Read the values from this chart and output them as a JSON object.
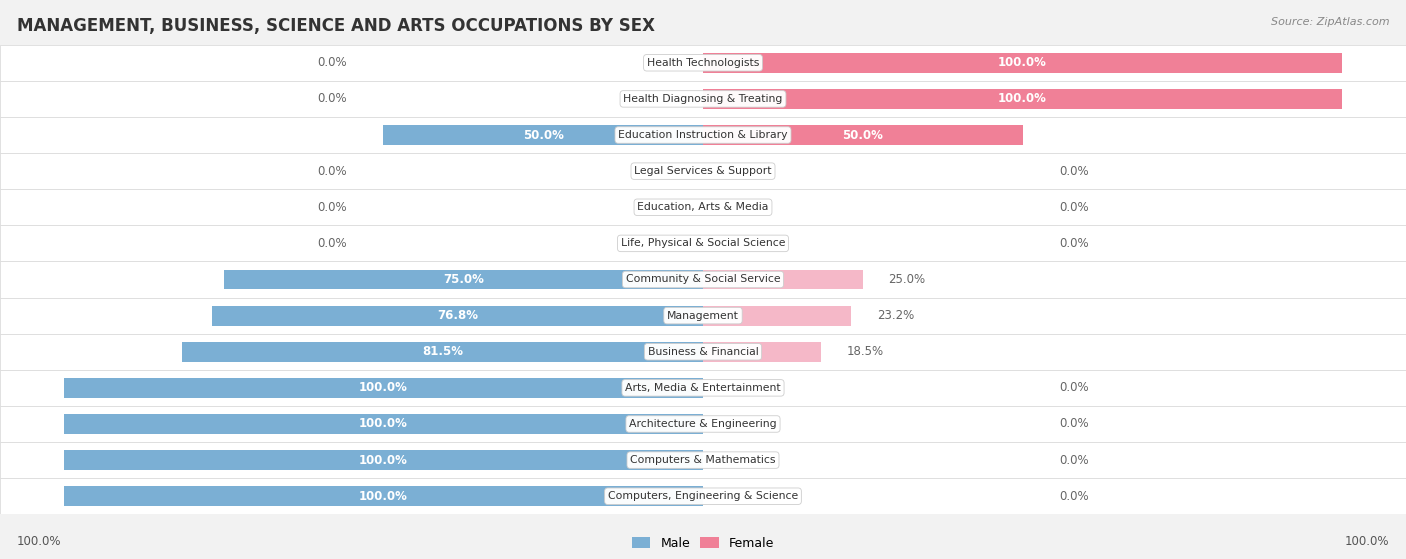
{
  "title": "MANAGEMENT, BUSINESS, SCIENCE AND ARTS OCCUPATIONS BY SEX",
  "source": "Source: ZipAtlas.com",
  "categories": [
    "Computers, Engineering & Science",
    "Computers & Mathematics",
    "Architecture & Engineering",
    "Arts, Media & Entertainment",
    "Business & Financial",
    "Management",
    "Community & Social Service",
    "Life, Physical & Social Science",
    "Education, Arts & Media",
    "Legal Services & Support",
    "Education Instruction & Library",
    "Health Diagnosing & Treating",
    "Health Technologists"
  ],
  "male": [
    100.0,
    100.0,
    100.0,
    100.0,
    81.5,
    76.8,
    75.0,
    0.0,
    0.0,
    0.0,
    50.0,
    0.0,
    0.0
  ],
  "female": [
    0.0,
    0.0,
    0.0,
    0.0,
    18.5,
    23.2,
    25.0,
    0.0,
    0.0,
    0.0,
    50.0,
    100.0,
    100.0
  ],
  "male_color": "#7bafd4",
  "female_color": "#f08097",
  "male_color_light": "#b8d4ea",
  "female_color_light": "#f5b8c8",
  "background_color": "#f2f2f2",
  "bar_background": "#ffffff",
  "title_fontsize": 12,
  "label_fontsize": 8.5,
  "bar_height": 0.55,
  "figsize": [
    14.06,
    5.59
  ]
}
